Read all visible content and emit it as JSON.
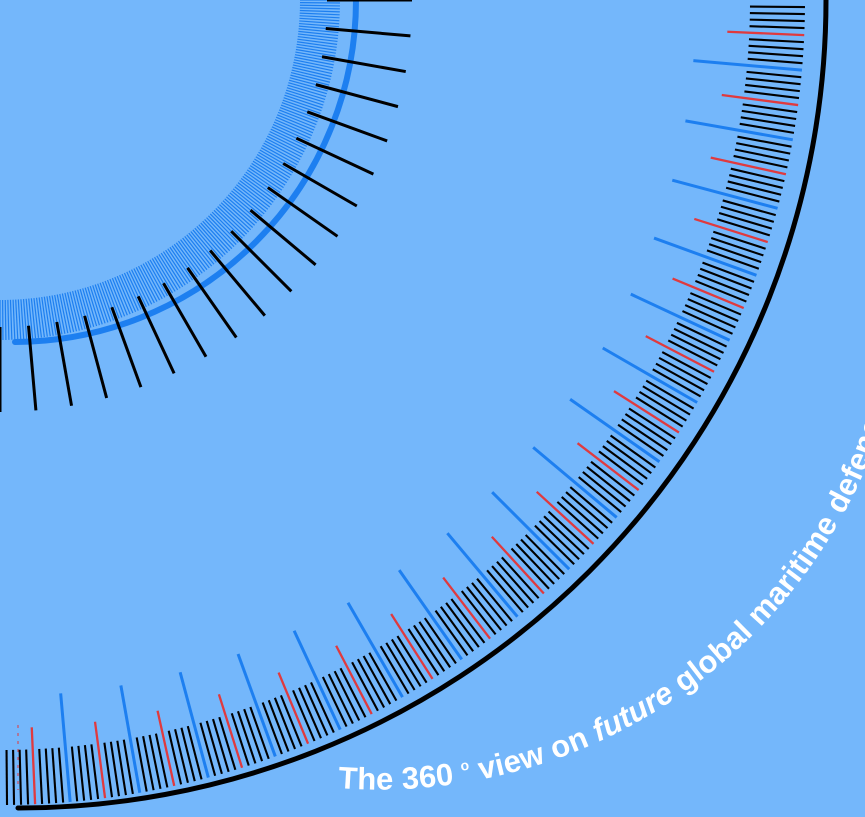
{
  "colors": {
    "background": "#74b7fb",
    "primary_tick": "#000000",
    "accent_blue": "#1d7ff0",
    "accent_red": "#e03a3e",
    "text": "#ffffff"
  },
  "tagline": {
    "prefix": "The 360",
    "degree": "o",
    "middle": " view on ",
    "emphasis": "future",
    "suffix": " global maritime defence and security"
  }
}
